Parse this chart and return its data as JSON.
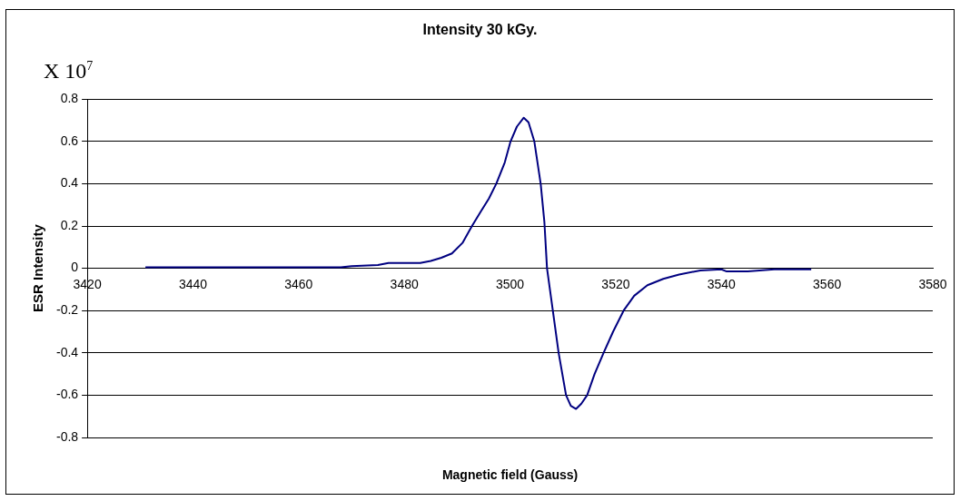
{
  "chart_data": {
    "type": "line",
    "title": "Intensity 30 kGy.",
    "xlabel": "Magnetic field (Gauss)",
    "ylabel": "ESR Intensity",
    "annotations": [
      "X 10$^{7}$"
    ],
    "xlim": [
      3420,
      3580
    ],
    "xticks": [
      3420,
      3440,
      3460,
      3480,
      3500,
      3520,
      3540,
      3560,
      3580
    ],
    "ylim": [
      -0.8,
      0.8
    ],
    "yticks": [
      -0.8,
      -0.6,
      -0.4,
      -0.2,
      0,
      0.2,
      0.4,
      0.6,
      0.8
    ],
    "grid": "y",
    "legend": false,
    "marker": "none",
    "line_style": "solid",
    "series": [
      {
        "color": "#000080",
        "x": [
          3431,
          3450,
          3468,
          3470,
          3475,
          3477,
          3480,
          3483,
          3485,
          3487,
          3489,
          3491,
          3492.8,
          3494.5,
          3496,
          3497.4,
          3499,
          3500.1,
          3501.3,
          3502.6,
          3503.5,
          3504.6,
          3505.8,
          3506.5,
          3507,
          3508.1,
          3509.2,
          3510.6,
          3511.5,
          3512.5,
          3513.5,
          3514.6,
          3516,
          3517.7,
          3519.5,
          3521.5,
          3523.5,
          3526,
          3529,
          3532,
          3536,
          3540,
          3541,
          3545,
          3550,
          3557
        ],
        "values": [
          0.005,
          0.005,
          0.005,
          0.01,
          0.015,
          0.025,
          0.025,
          0.025,
          0.035,
          0.05,
          0.07,
          0.12,
          0.2,
          0.27,
          0.33,
          0.4,
          0.5,
          0.6,
          0.67,
          0.712,
          0.69,
          0.6,
          0.4,
          0.22,
          0.0,
          -0.2,
          -0.4,
          -0.6,
          -0.65,
          -0.665,
          -0.64,
          -0.6,
          -0.5,
          -0.4,
          -0.3,
          -0.2,
          -0.13,
          -0.08,
          -0.05,
          -0.03,
          -0.01,
          -0.005,
          -0.015,
          -0.015,
          -0.005,
          -0.005
        ]
      }
    ]
  }
}
